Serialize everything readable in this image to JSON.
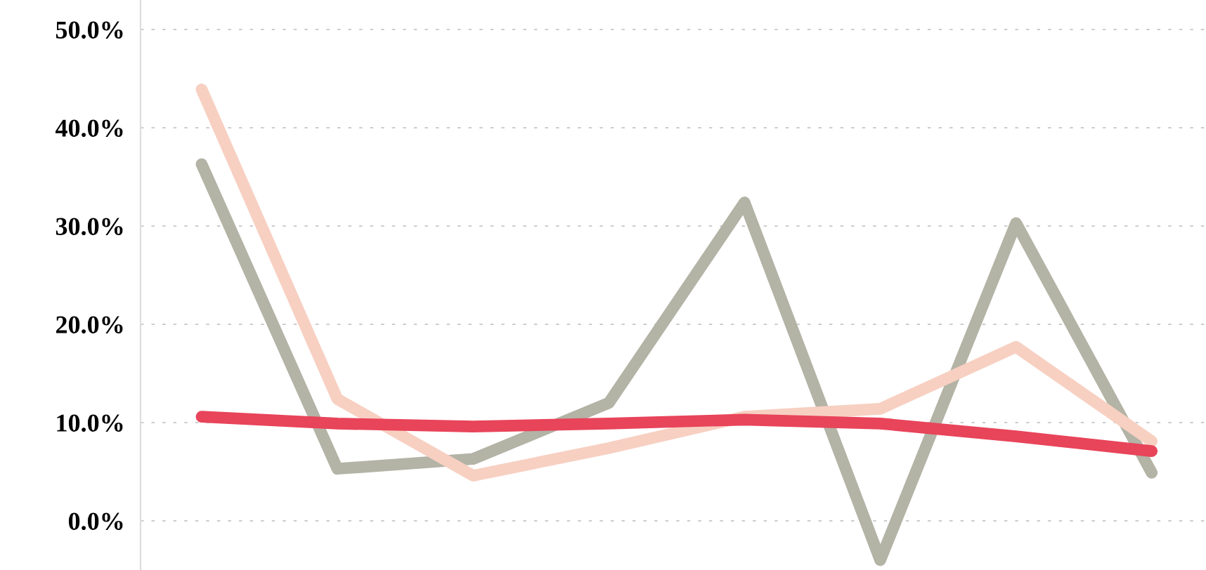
{
  "chart_data": {
    "type": "line",
    "categories": [
      null,
      null,
      null,
      null,
      null,
      null,
      null,
      null
    ],
    "series": [
      {
        "color": "#b3b3a6",
        "values": [
          36.3,
          5.3,
          6.3,
          12.0,
          32.4,
          -4.0,
          30.3,
          4.9
        ]
      },
      {
        "color": "#f7d0c2",
        "values": [
          43.9,
          12.4,
          4.6,
          7.4,
          10.6,
          11.4,
          17.7,
          8.1
        ]
      },
      {
        "color": "#e8445a",
        "values": [
          10.6,
          9.9,
          9.6,
          9.9,
          10.3,
          9.9,
          8.6,
          7.1
        ]
      }
    ],
    "ylim": [
      -5,
      53
    ],
    "yticks": [
      {
        "value": 0,
        "label": "0.0%"
      },
      {
        "value": 10,
        "label": "10.0%"
      },
      {
        "value": 20,
        "label": "20.0%"
      },
      {
        "value": 30,
        "label": "30.0%"
      },
      {
        "value": 40,
        "label": "40.0%"
      },
      {
        "value": 50,
        "label": "50.0%"
      }
    ],
    "grid": "y",
    "tick_labels": "y",
    "marker": "none",
    "line_style": "solid"
  }
}
